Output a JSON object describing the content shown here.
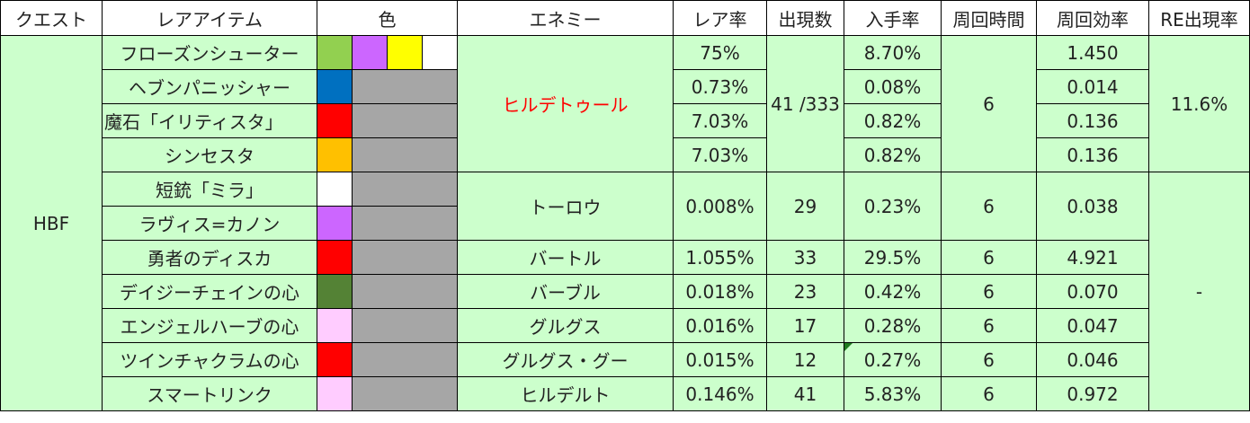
{
  "headers": [
    "クエスト",
    "レアアイテム",
    "色",
    "エネミー",
    "レア率",
    "出現数",
    "入手率",
    "周回時間",
    "周回効率",
    "RE出現率"
  ],
  "quest": "HBF",
  "group1": {
    "enemy": "ヒルデトゥール",
    "enemy_color": "#ff0000",
    "count": "41 /333",
    "time": "6",
    "re_rate": "11.6%",
    "rows": [
      {
        "item": "フローズンシューター",
        "colors": [
          "#92d050",
          "#cc66ff",
          "#ffff00",
          "#ffffff"
        ],
        "rare": "75%",
        "get": "8.70%",
        "eff": "1.450"
      },
      {
        "item": "ヘブンパニッシャー",
        "colors": [
          "#0070c0"
        ],
        "rare": "0.73%",
        "get": "0.08%",
        "eff": "0.014"
      },
      {
        "item": "魔石「イリティスタ」",
        "colors": [
          "#ff0000"
        ],
        "rare": "7.03%",
        "get": "0.82%",
        "eff": "0.136"
      },
      {
        "item": "シンセスタ",
        "colors": [
          "#ffc000"
        ],
        "rare": "7.03%",
        "get": "0.82%",
        "eff": "0.136"
      }
    ]
  },
  "group2": {
    "enemy": "トーロウ",
    "rare": "0.008%",
    "count": "29",
    "get": "0.23%",
    "time": "6",
    "eff": "0.038",
    "rows": [
      {
        "item": "短銃「ミラ」",
        "colors": [
          "#ffffff"
        ]
      },
      {
        "item": "ラヴィス=カノン",
        "colors": [
          "#cc66ff"
        ]
      }
    ]
  },
  "others_re_rate": "-",
  "rows": [
    {
      "item": "勇者のディスカ",
      "colors": [
        "#ff0000"
      ],
      "enemy": "バートル",
      "rare": "1.055%",
      "count": "33",
      "get": "29.5%",
      "time": "6",
      "eff": "4.921"
    },
    {
      "item": "デイジーチェインの心",
      "colors": [
        "#548235"
      ],
      "enemy": "バーブル",
      "rare": "0.018%",
      "count": "23",
      "get": "0.42%",
      "time": "6",
      "eff": "0.070"
    },
    {
      "item": "エンジェルハーブの心",
      "colors": [
        "#ffccff"
      ],
      "enemy": "グルグス",
      "rare": "0.016%",
      "count": "17",
      "get": "0.28%",
      "time": "6",
      "eff": "0.047"
    },
    {
      "item": "ツインチャクラムの心",
      "colors": [
        "#ff0000"
      ],
      "enemy": "グルグス・グー",
      "rare": "0.015%",
      "count": "12",
      "get": "0.27%",
      "time": "6",
      "eff": "0.046"
    },
    {
      "item": "スマートリンク",
      "colors": [
        "#ffccff"
      ],
      "enemy": "ヒルデルト",
      "rare": "0.146%",
      "count": "41",
      "get": "5.83%",
      "time": "6",
      "eff": "0.972"
    }
  ]
}
